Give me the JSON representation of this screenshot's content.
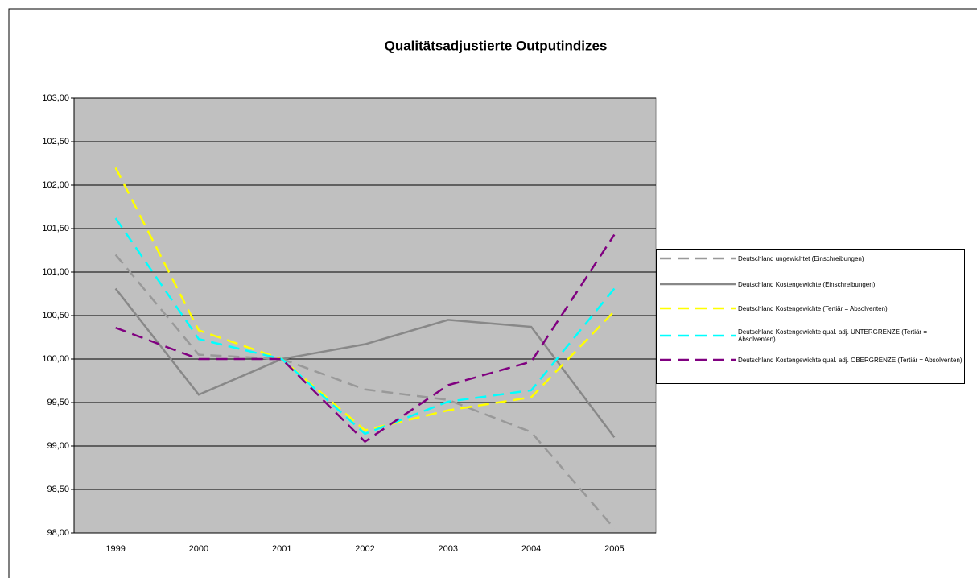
{
  "chart_data": {
    "type": "line",
    "title": "Qualitätsadjustierte Outputindizes",
    "categories": [
      "1999",
      "2000",
      "2001",
      "2002",
      "2003",
      "2004",
      "2005"
    ],
    "ylim": [
      98,
      103
    ],
    "yticks": [
      {
        "value": 98,
        "label": "98,00"
      },
      {
        "value": 98.5,
        "label": "98,50"
      },
      {
        "value": 99,
        "label": "99,00"
      },
      {
        "value": 99.5,
        "label": "99,50"
      },
      {
        "value": 100,
        "label": "100,00"
      },
      {
        "value": 100.5,
        "label": "100,50"
      },
      {
        "value": 101,
        "label": "101,00"
      },
      {
        "value": 101.5,
        "label": "101,50"
      },
      {
        "value": 102,
        "label": "102,00"
      },
      {
        "value": 102.5,
        "label": "102,50"
      },
      {
        "value": 103,
        "label": "103,00"
      }
    ],
    "grid": true,
    "legend": "right",
    "series": [
      {
        "name": "Deutschland ungewichtet (Einschreibungen)",
        "color": "#999999",
        "dashed": true,
        "values": [
          101.2,
          100.05,
          100.0,
          99.65,
          99.53,
          99.16,
          98.05
        ]
      },
      {
        "name": "Deutschland Kostengewichte (Einschreibungen)",
        "color": "#888888",
        "dashed": false,
        "values": [
          100.81,
          99.59,
          100.0,
          100.17,
          100.45,
          100.37,
          99.1
        ]
      },
      {
        "name": "Deutschland Kostengewichte (Tertiär = Absolventen)",
        "color": "#ffff00",
        "dashed": true,
        "values": [
          102.2,
          100.33,
          100.0,
          99.18,
          99.41,
          99.56,
          100.55
        ]
      },
      {
        "name": "Deutschland Kostengewichte qual. adj. UNTERGRENZE (Tertiär = Absolventen)",
        "color": "#00ffff",
        "dashed": true,
        "values": [
          101.62,
          100.23,
          100.0,
          99.14,
          99.51,
          99.64,
          100.81
        ]
      },
      {
        "name": "Deutschland Kostengewichte qual. adj. OBERGRENZE (Tertiär = Absolventen)",
        "color": "#800080",
        "dashed": true,
        "values": [
          100.36,
          100.0,
          100.0,
          99.05,
          99.7,
          99.97,
          101.43
        ]
      }
    ]
  }
}
